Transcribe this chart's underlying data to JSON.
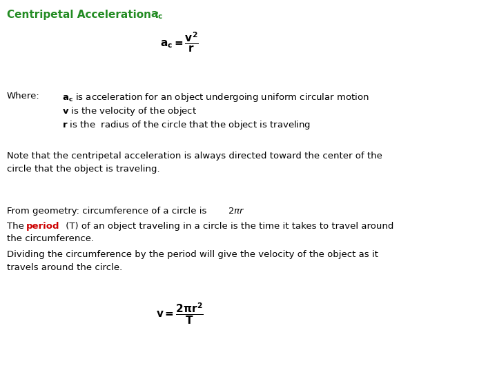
{
  "bg_color": "#ffffff",
  "green_color": "#228B22",
  "black_color": "#000000",
  "red_color": "#cc0000",
  "title_fontsize": 11,
  "body_fontsize": 9.5,
  "formula1_fontsize": 11,
  "formula2_fontsize": 11
}
